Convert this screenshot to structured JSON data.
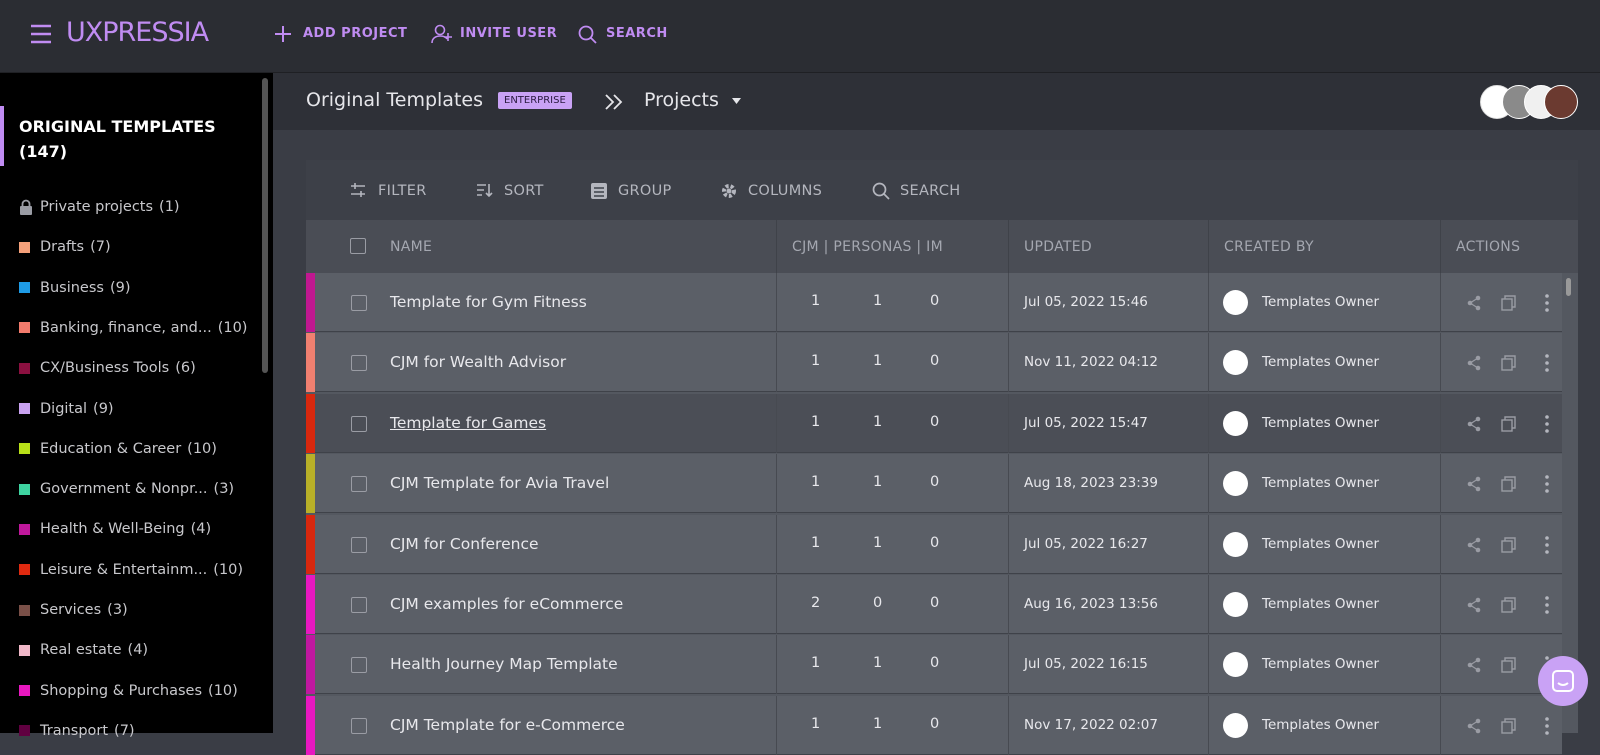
{
  "header": {
    "logo": "UXPRESSIA",
    "nav": [
      "ADD PROJECT",
      "INVITE USER",
      "SEARCH"
    ]
  },
  "sidebar": {
    "title": "ORIGINAL TEMPLATES (147)",
    "items": [
      {
        "label": "Private projects",
        "count": "(1)",
        "color": "lock"
      },
      {
        "label": "Drafts",
        "count": "(7)",
        "color": "#f4a07a"
      },
      {
        "label": "Business",
        "count": "(9)",
        "color": "#1e9be6"
      },
      {
        "label": "Banking, finance, and...",
        "count": "(10)",
        "color": "#f27b6c"
      },
      {
        "label": "CX/Business Tools",
        "count": "(6)",
        "color": "#8b1040"
      },
      {
        "label": "Digital",
        "count": "(9)",
        "color": "#c9a2f0"
      },
      {
        "label": "Education & Career",
        "count": "(10)",
        "color": "#b8e018"
      },
      {
        "label": "Government & Nonpr...",
        "count": "(3)",
        "color": "#3ed3a0"
      },
      {
        "label": "Health & Well-Being",
        "count": "(4)",
        "color": "#c0189c"
      },
      {
        "label": "Leisure & Entertainm...",
        "count": "(10)",
        "color": "#e02a10"
      },
      {
        "label": "Services",
        "count": "(3)",
        "color": "#7a5048"
      },
      {
        "label": "Real estate",
        "count": "(4)",
        "color": "#f0b8c8"
      },
      {
        "label": "Shopping & Purchases",
        "count": "(10)",
        "color": "#e818c0"
      },
      {
        "label": "Transport",
        "count": "(7)",
        "color": "#600040"
      }
    ]
  },
  "breadcrumb": {
    "workspace": "Original Templates",
    "badge": "ENTERPRISE",
    "section": "Projects"
  },
  "toolbar": [
    "FILTER",
    "SORT",
    "GROUP",
    "COLUMNS",
    "SEARCH"
  ],
  "table": {
    "columns": [
      "NAME",
      "CJM | PERSONAS | IM",
      "UPDATED",
      "CREATED BY",
      "ACTIONS"
    ],
    "rows": [
      {
        "name": "Template for Gym Fitness",
        "cjm": 1,
        "personas": 1,
        "im": 0,
        "updated": "Jul 05, 2022 15:46",
        "created_by": "Templates Owner",
        "color": "#c01890"
      },
      {
        "name": "CJM for Wealth Advisor",
        "cjm": 1,
        "personas": 1,
        "im": 0,
        "updated": "Nov 11, 2022 04:12",
        "created_by": "Templates Owner",
        "color": "#f08070"
      },
      {
        "name": "Template for Games",
        "cjm": 1,
        "personas": 1,
        "im": 0,
        "updated": "Jul 05, 2022 15:47",
        "created_by": "Templates Owner",
        "color": "#d8280e"
      },
      {
        "name": "CJM Template for Avia Travel",
        "cjm": 1,
        "personas": 1,
        "im": 0,
        "updated": "Aug 18, 2023 23:39",
        "created_by": "Templates Owner",
        "color": "#b8b028"
      },
      {
        "name": "CJM for Conference",
        "cjm": 1,
        "personas": 1,
        "im": 0,
        "updated": "Jul 05, 2022 16:27",
        "created_by": "Templates Owner",
        "color": "#d8280e"
      },
      {
        "name": "CJM examples for eCommerce",
        "cjm": 2,
        "personas": 0,
        "im": 0,
        "updated": "Aug 16, 2023 13:56",
        "created_by": "Templates Owner",
        "color": "#e818c0"
      },
      {
        "name": "Health Journey Map Template",
        "cjm": 1,
        "personas": 1,
        "im": 0,
        "updated": "Jul 05, 2022 16:15",
        "created_by": "Templates Owner",
        "color": "#c018a0"
      },
      {
        "name": "CJM Template for e-Commerce",
        "cjm": 1,
        "personas": 1,
        "im": 0,
        "updated": "Nov 17, 2022 02:07",
        "created_by": "Templates Owner",
        "color": "#e818c0"
      }
    ]
  }
}
